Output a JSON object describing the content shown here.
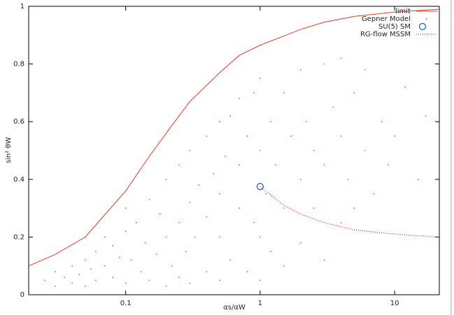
{
  "chart_data": {
    "type": "scatter",
    "x_label": "αs/αW",
    "y_label": "sin² θW",
    "xlim": [
      0.019,
      21.5
    ],
    "ylim": [
      0,
      1
    ],
    "log_x": true,
    "xticks": [
      0.1,
      1,
      10
    ],
    "yticks": [
      0,
      0.2,
      0.4,
      0.6,
      0.8,
      1
    ],
    "legend": "top-right",
    "series": [
      {
        "name": "limit",
        "color": "#e8392a",
        "mode": "line",
        "x": [
          0.019,
          0.03,
          0.05,
          0.1,
          0.15,
          0.2,
          0.3,
          0.5,
          0.7,
          1,
          2,
          3,
          5,
          10,
          21.5
        ],
        "values": [
          0.1,
          0.14,
          0.2,
          0.36,
          0.48,
          0.56,
          0.67,
          0.77,
          0.83,
          0.865,
          0.92,
          0.945,
          0.965,
          0.98,
          0.99
        ]
      },
      {
        "name": "Gepner Model",
        "color": "#22cc22",
        "mode": "points",
        "x": [
          0.025,
          0.03,
          0.03,
          0.035,
          0.04,
          0.04,
          0.045,
          0.05,
          0.05,
          0.055,
          0.06,
          0.06,
          0.07,
          0.07,
          0.08,
          0.08,
          0.09,
          0.1,
          0.1,
          0.1,
          0.11,
          0.12,
          0.13,
          0.14,
          0.15,
          0.15,
          0.17,
          0.18,
          0.2,
          0.2,
          0.2,
          0.22,
          0.25,
          0.25,
          0.25,
          0.28,
          0.3,
          0.3,
          0.3,
          0.33,
          0.35,
          0.4,
          0.4,
          0.4,
          0.45,
          0.5,
          0.5,
          0.5,
          0.5,
          0.55,
          0.6,
          0.6,
          0.7,
          0.7,
          0.7,
          0.8,
          0.8,
          0.9,
          0.9,
          1,
          1,
          1,
          1,
          1.1,
          1.2,
          1.2,
          1.3,
          1.5,
          1.5,
          1.5,
          1.7,
          2,
          2,
          2,
          2.2,
          2.5,
          2.5,
          3,
          3,
          3,
          3.5,
          4,
          4,
          4,
          4.5,
          5,
          5,
          6,
          6,
          7,
          8,
          9,
          10,
          12,
          15,
          17
        ],
        "values": [
          0.05,
          0.03,
          0.08,
          0.06,
          0.04,
          0.1,
          0.07,
          0.03,
          0.12,
          0.09,
          0.05,
          0.15,
          0.1,
          0.2,
          0.06,
          0.17,
          0.13,
          0.04,
          0.22,
          0.3,
          0.12,
          0.25,
          0.08,
          0.18,
          0.05,
          0.33,
          0.14,
          0.28,
          0.03,
          0.2,
          0.4,
          0.1,
          0.06,
          0.25,
          0.45,
          0.15,
          0.04,
          0.32,
          0.5,
          0.2,
          0.38,
          0.08,
          0.27,
          0.55,
          0.42,
          0.05,
          0.2,
          0.35,
          0.6,
          0.48,
          0.12,
          0.62,
          0.3,
          0.45,
          0.68,
          0.08,
          0.55,
          0.25,
          0.7,
          0.05,
          0.2,
          0.5,
          0.75,
          0.35,
          0.6,
          0.15,
          0.45,
          0.1,
          0.3,
          0.7,
          0.55,
          0.18,
          0.4,
          0.78,
          0.6,
          0.3,
          0.5,
          0.12,
          0.45,
          0.8,
          0.65,
          0.25,
          0.55,
          0.82,
          0.4,
          0.3,
          0.7,
          0.5,
          0.78,
          0.35,
          0.6,
          0.45,
          0.55,
          0.72,
          0.4,
          0.62
        ]
      },
      {
        "name": "SU(5) SM",
        "color": "#1f4fd0",
        "mode": "circle",
        "x": [
          1
        ],
        "values": [
          0.375
        ]
      },
      {
        "name": "RG-flow MSSM",
        "color": "#d020d0",
        "mode": "dotted",
        "x": [
          1,
          1.5,
          2,
          3,
          5,
          10,
          21.5
        ],
        "values": [
          0.375,
          0.31,
          0.28,
          0.25,
          0.225,
          0.21,
          0.2
        ]
      }
    ]
  }
}
